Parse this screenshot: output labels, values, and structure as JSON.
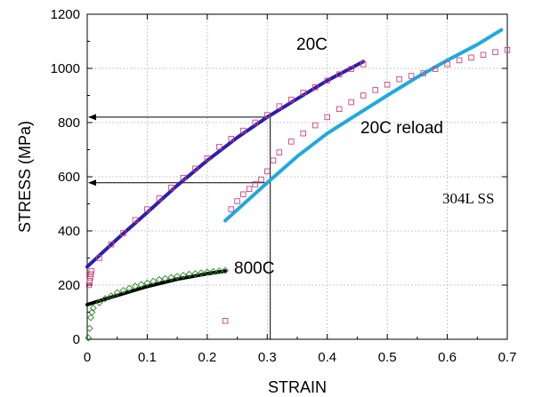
{
  "chart_data": {
    "type": "scatter",
    "title": "",
    "xlabel": "STRAIN",
    "ylabel": "STRESS (MPa)",
    "xlim": [
      0,
      0.7
    ],
    "ylim": [
      0,
      1200
    ],
    "x_ticks": [
      "0",
      "0.1",
      "0.2",
      "0.3",
      "0.4",
      "0.5",
      "0.6",
      "0.7"
    ],
    "y_ticks": [
      "0",
      "200",
      "400",
      "600",
      "800",
      "1000",
      "1200"
    ],
    "grid": true,
    "annotations": {
      "curve_20c": "20C",
      "curve_20c_reload": "20C reload",
      "curve_800c": "800C",
      "material": "304L SS"
    },
    "colors": {
      "fit_20c": "#2a1fb0",
      "fit_20c_reload": "#1fa9e0",
      "fit_800c": "#000000",
      "data_20c": "#d0407a",
      "data_800c": "#2a8a2a"
    },
    "reference_lines": {
      "vertical_strain": 0.305,
      "horizontal_stresses": [
        820,
        578
      ]
    },
    "series": [
      {
        "style": "line",
        "color": "#2a1fb0",
        "points": [
          [
            0,
            268
          ],
          [
            0.05,
            370
          ],
          [
            0.1,
            468
          ],
          [
            0.15,
            568
          ],
          [
            0.2,
            660
          ],
          [
            0.25,
            745
          ],
          [
            0.3,
            820
          ],
          [
            0.35,
            888
          ],
          [
            0.4,
            955
          ],
          [
            0.46,
            1025
          ]
        ]
      },
      {
        "style": "line",
        "color": "#1fa9e0",
        "points": [
          [
            0.23,
            438
          ],
          [
            0.3,
            578
          ],
          [
            0.35,
            675
          ],
          [
            0.4,
            760
          ],
          [
            0.45,
            830
          ],
          [
            0.5,
            900
          ],
          [
            0.55,
            968
          ],
          [
            0.6,
            1030
          ],
          [
            0.65,
            1088
          ],
          [
            0.69,
            1142
          ]
        ]
      },
      {
        "style": "line",
        "color": "#000000",
        "points": [
          [
            0,
            128
          ],
          [
            0.05,
            162
          ],
          [
            0.1,
            195
          ],
          [
            0.15,
            222
          ],
          [
            0.2,
            242
          ],
          [
            0.23,
            252
          ]
        ]
      },
      {
        "style": "square",
        "color": "#d0407a",
        "points": [
          [
            0.003,
            200
          ],
          [
            0.004,
            215
          ],
          [
            0.005,
            228
          ],
          [
            0.006,
            240
          ],
          [
            0.007,
            252
          ],
          [
            0.02,
            300
          ],
          [
            0.04,
            350
          ],
          [
            0.06,
            392
          ],
          [
            0.08,
            440
          ],
          [
            0.1,
            480
          ],
          [
            0.12,
            520
          ],
          [
            0.14,
            560
          ],
          [
            0.16,
            596
          ],
          [
            0.18,
            630
          ],
          [
            0.2,
            668
          ],
          [
            0.22,
            710
          ],
          [
            0.24,
            740
          ],
          [
            0.26,
            770
          ],
          [
            0.28,
            800
          ],
          [
            0.3,
            828
          ],
          [
            0.32,
            860
          ],
          [
            0.34,
            885
          ],
          [
            0.36,
            910
          ],
          [
            0.38,
            930
          ],
          [
            0.4,
            955
          ],
          [
            0.42,
            978
          ],
          [
            0.44,
            998
          ],
          [
            0.46,
            1015
          ]
        ]
      },
      {
        "style": "square",
        "color": "#d0407a",
        "points": [
          [
            0.23,
            68
          ],
          [
            0.24,
            480
          ],
          [
            0.25,
            510
          ],
          [
            0.26,
            535
          ],
          [
            0.27,
            555
          ],
          [
            0.28,
            572
          ],
          [
            0.29,
            590
          ],
          [
            0.3,
            620
          ],
          [
            0.31,
            660
          ],
          [
            0.32,
            690
          ],
          [
            0.34,
            730
          ],
          [
            0.36,
            760
          ],
          [
            0.38,
            790
          ],
          [
            0.4,
            820
          ],
          [
            0.42,
            850
          ],
          [
            0.44,
            875
          ],
          [
            0.46,
            900
          ],
          [
            0.48,
            920
          ],
          [
            0.5,
            940
          ],
          [
            0.52,
            960
          ],
          [
            0.54,
            972
          ],
          [
            0.56,
            982
          ],
          [
            0.58,
            998
          ],
          [
            0.6,
            1015
          ],
          [
            0.62,
            1030
          ],
          [
            0.64,
            1040
          ],
          [
            0.66,
            1050
          ],
          [
            0.68,
            1060
          ],
          [
            0.7,
            1068
          ]
        ]
      },
      {
        "style": "diamond",
        "color": "#2a8a2a",
        "points": [
          [
            0.002,
            5
          ],
          [
            0.004,
            40
          ],
          [
            0.006,
            80
          ],
          [
            0.008,
            100
          ],
          [
            0.01,
            115
          ],
          [
            0.02,
            135
          ],
          [
            0.03,
            150
          ],
          [
            0.04,
            160
          ],
          [
            0.05,
            172
          ],
          [
            0.06,
            180
          ],
          [
            0.07,
            188
          ],
          [
            0.08,
            196
          ],
          [
            0.09,
            202
          ],
          [
            0.1,
            208
          ],
          [
            0.11,
            214
          ],
          [
            0.12,
            220
          ],
          [
            0.13,
            224
          ],
          [
            0.14,
            228
          ],
          [
            0.15,
            232
          ],
          [
            0.16,
            236
          ],
          [
            0.17,
            240
          ],
          [
            0.18,
            242
          ],
          [
            0.19,
            245
          ],
          [
            0.2,
            248
          ],
          [
            0.21,
            250
          ],
          [
            0.22,
            252
          ],
          [
            0.23,
            254
          ]
        ]
      }
    ]
  }
}
